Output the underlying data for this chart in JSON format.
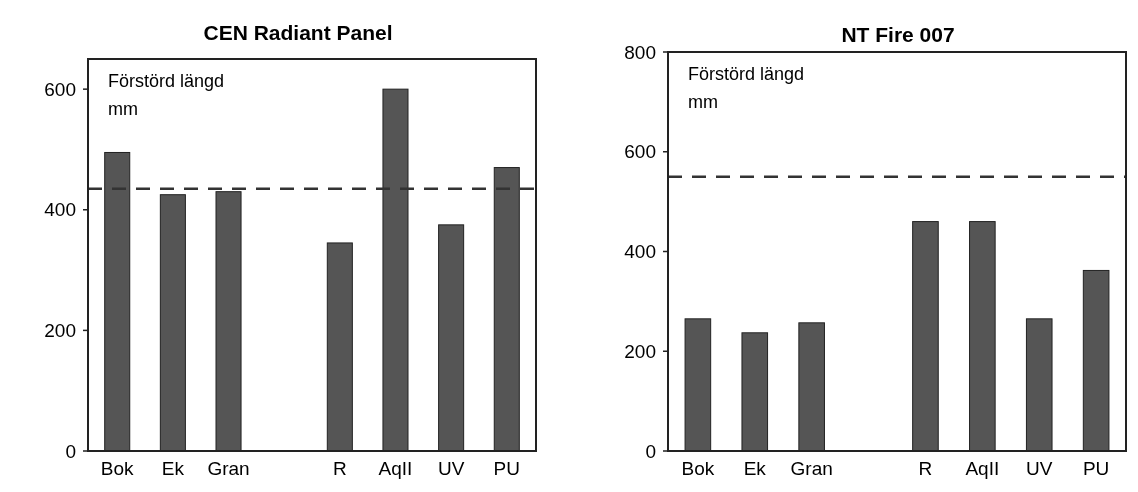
{
  "chart_data": [
    {
      "type": "bar",
      "title": "CEN Radiant Panel",
      "annotations": [
        "Förstörd längd",
        "mm"
      ],
      "categories": [
        "Bok",
        "Ek",
        "Gran",
        null,
        "R",
        "AqII",
        "UV",
        "PU"
      ],
      "values": [
        495,
        425,
        430,
        null,
        345,
        600,
        375,
        470
      ],
      "color": "#555555",
      "ylim": [
        0,
        650
      ],
      "yticks": [
        0,
        200,
        400,
        600
      ],
      "grid": false,
      "ref_lines": [
        {
          "axis": "y",
          "value": 435,
          "color": "#333333",
          "line_style": "dashed"
        }
      ]
    },
    {
      "type": "bar",
      "title": "NT Fire 007",
      "annotations": [
        "Förstörd längd",
        "mm"
      ],
      "categories": [
        "Bok",
        "Ek",
        "Gran",
        null,
        "R",
        "AqII",
        "UV",
        "PU"
      ],
      "values": [
        265,
        237,
        257,
        null,
        460,
        460,
        265,
        362
      ],
      "color": "#555555",
      "ylim": [
        0,
        800
      ],
      "yticks": [
        0,
        200,
        400,
        600,
        800
      ],
      "grid": false,
      "ref_lines": [
        {
          "axis": "y",
          "value": 550,
          "color": "#333333",
          "line_style": "dashed"
        }
      ]
    }
  ]
}
